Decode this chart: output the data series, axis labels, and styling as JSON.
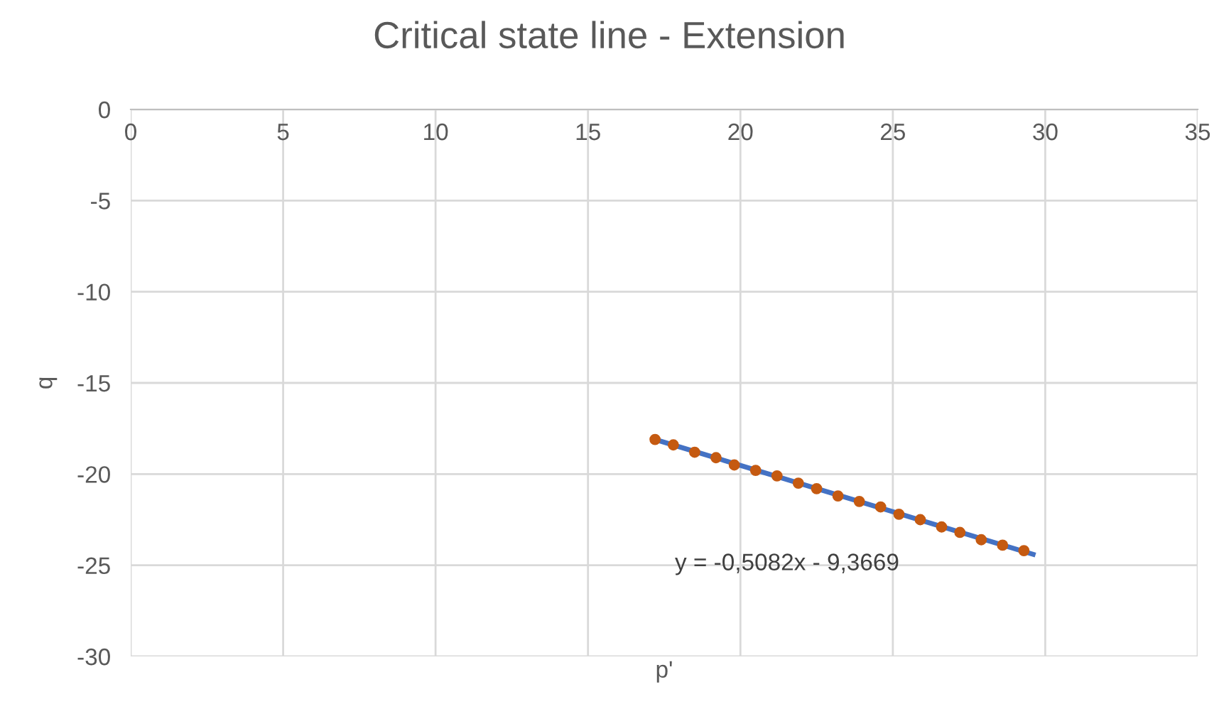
{
  "chart_data": {
    "type": "scatter",
    "title": "Critical state line - Extension",
    "xlabel": "p'",
    "ylabel": "q",
    "xlim": [
      0,
      35
    ],
    "xticks": [
      0,
      5,
      10,
      15,
      20,
      25,
      30,
      35
    ],
    "ylim": [
      -30,
      0
    ],
    "yticks": [
      -30,
      -25,
      -20,
      -15,
      -10,
      -5,
      0
    ],
    "grid": true,
    "series": [
      {
        "marker": "circle",
        "color": "#c55a11",
        "x": [
          17.2,
          17.8,
          18.5,
          19.2,
          19.8,
          20.5,
          21.2,
          21.9,
          22.5,
          23.2,
          23.9,
          24.6,
          25.2,
          25.9,
          26.6,
          27.2,
          27.9,
          28.6,
          29.3
        ],
        "values": [
          -18.1,
          -18.4,
          -18.8,
          -19.1,
          -19.5,
          -19.8,
          -20.1,
          -20.5,
          -20.8,
          -21.2,
          -21.5,
          -21.8,
          -22.2,
          -22.5,
          -22.9,
          -23.2,
          -23.6,
          -23.9,
          -24.2
        ]
      },
      {
        "type": "line",
        "color": "#4472c4",
        "x": [
          17.2,
          29.6
        ],
        "values": [
          -18.1,
          -24.4
        ]
      }
    ],
    "annotations": [
      "y = -0,5082x - 9,3669"
    ]
  }
}
